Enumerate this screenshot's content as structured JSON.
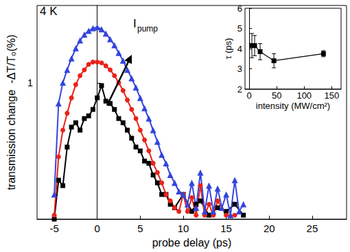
{
  "chart_data": [
    {
      "type": "line",
      "x_label": "probe delay (ps)",
      "y_label": "transmission change  -ΔT/T₀(%)",
      "annotations": [
        {
          "text": "4 K"
        },
        {
          "text": "I",
          "subscript": "pump"
        }
      ],
      "xlim": [
        -7,
        29
      ],
      "xticks": [
        -5,
        0,
        5,
        10,
        15,
        20,
        25
      ],
      "ylim": [
        0.23,
        2.3
      ],
      "yticks": [
        1
      ],
      "log": "y",
      "grid": false,
      "series": [
        {
          "color": "#000000",
          "marker": "square",
          "x": [
            -5,
            -4.5,
            -4,
            -3.5,
            -3,
            -2.5,
            -2,
            -1.5,
            -1,
            -0.5,
            0,
            0.5,
            1,
            1.5,
            2,
            2.5,
            3,
            3.5,
            4,
            4.5,
            5,
            5.5,
            6,
            6.5,
            7,
            7.5,
            8,
            8.5,
            9,
            10,
            11,
            11.5,
            12,
            13,
            14,
            15,
            16,
            17
          ],
          "values": [
            0.23,
            0.35,
            0.33,
            0.5,
            0.62,
            0.65,
            0.6,
            0.68,
            0.7,
            0.75,
            0.85,
            0.97,
            0.82,
            0.8,
            0.75,
            0.68,
            0.65,
            0.6,
            0.55,
            0.5,
            0.48,
            0.43,
            0.42,
            0.37,
            0.34,
            0.3,
            0.3,
            0.27,
            0.26,
            0.3,
            0.25,
            0.27,
            0.28,
            0.24,
            0.26,
            0.25,
            0.27,
            0.24
          ]
        },
        {
          "color": "#e8231a",
          "marker": "circle",
          "x": [
            -5,
            -4.5,
            -4,
            -3.5,
            -3,
            -2.5,
            -2,
            -1.5,
            -1,
            -0.5,
            0,
            0.5,
            1,
            1.5,
            2,
            2.5,
            3,
            3.5,
            4,
            4.5,
            5,
            5.5,
            6,
            6.5,
            7,
            7.5,
            8,
            8.5,
            9,
            9.5,
            10,
            10.5,
            11,
            11.5,
            12,
            12.5,
            13,
            13.5,
            14,
            15,
            16
          ],
          "values": [
            0.24,
            0.45,
            0.6,
            0.72,
            0.85,
            0.98,
            1.08,
            1.15,
            1.22,
            1.25,
            1.25,
            1.24,
            1.2,
            1.15,
            1.08,
            1.0,
            0.92,
            0.83,
            0.75,
            0.68,
            0.6,
            0.54,
            0.48,
            0.42,
            0.38,
            0.34,
            0.3,
            0.28,
            0.26,
            0.25,
            0.3,
            0.25,
            0.29,
            0.24,
            0.33,
            0.24,
            0.27,
            0.24,
            0.28,
            0.24,
            0.24
          ]
        },
        {
          "color": "#3344dd",
          "marker": "triangle",
          "x": [
            -5,
            -4.5,
            -4,
            -3.5,
            -3,
            -2.5,
            -2,
            -1.5,
            -1,
            -0.5,
            0,
            0.5,
            1,
            1.5,
            2,
            2.5,
            3,
            3.5,
            4,
            4.5,
            5,
            5.5,
            6,
            6.5,
            7,
            7.5,
            8,
            8.5,
            9,
            9.5,
            10,
            10.5,
            11,
            11.5,
            12,
            12.5,
            13,
            13.5,
            14,
            14.5,
            15,
            15.5,
            16,
            16.5,
            17
          ],
          "values": [
            0.3,
            0.8,
            1.0,
            1.15,
            1.3,
            1.45,
            1.58,
            1.68,
            1.75,
            1.8,
            1.82,
            1.78,
            1.7,
            1.6,
            1.5,
            1.38,
            1.27,
            1.15,
            1.05,
            0.95,
            0.85,
            0.76,
            0.68,
            0.6,
            0.53,
            0.46,
            0.42,
            0.37,
            0.34,
            0.31,
            0.3,
            0.27,
            0.34,
            0.26,
            0.38,
            0.25,
            0.33,
            0.25,
            0.32,
            0.26,
            0.3,
            0.24,
            0.35,
            0.25,
            0.27
          ]
        }
      ]
    },
    {
      "type": "line",
      "x_label": "intensity (MW/cm²)",
      "y_label": "τ (ps)",
      "xlim": [
        -7.5,
        167
      ],
      "xticks": [
        0,
        50,
        100,
        150
      ],
      "ylim": [
        2,
        6
      ],
      "yticks": [
        2,
        3,
        4,
        5,
        6
      ],
      "grid": false,
      "series": [
        {
          "color": "#000000",
          "marker": "square",
          "x": [
            5,
            10,
            20,
            45,
            135
          ],
          "values": [
            4.15,
            4.15,
            3.85,
            3.4,
            3.75
          ],
          "errors": [
            0.6,
            0.5,
            0.4,
            0.35,
            0.15
          ]
        }
      ]
    }
  ]
}
